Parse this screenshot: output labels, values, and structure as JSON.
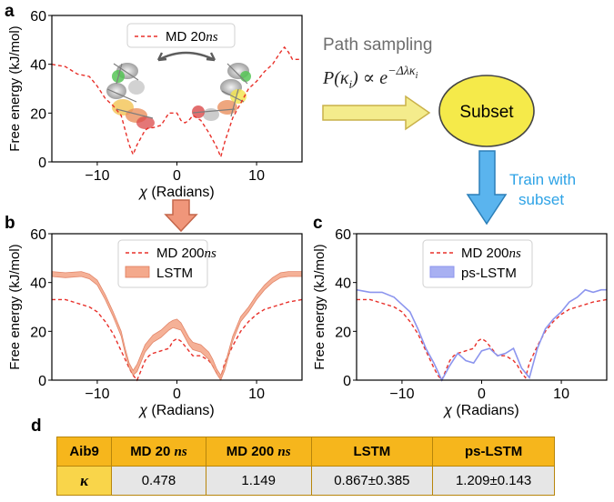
{
  "panel_labels": {
    "a": "a",
    "b": "b",
    "c": "c",
    "d": "d"
  },
  "flow": {
    "path_sampling": "Path sampling",
    "formula_prefix": "P(κ",
    "formula_sub": "i",
    "formula_mid": ") ∝ e",
    "formula_exp": "−Δλκ",
    "formula_exp_sub": "i",
    "subset": "Subset",
    "train_line1": "Train with",
    "train_line2": "subset"
  },
  "colors": {
    "md": "#e8302a",
    "lstm": "#f4a98c",
    "lstm_edge": "#e07a5a",
    "pslstm": "#8c95ee",
    "arrow_yellow": "#f4ec8c",
    "arrow_orange": "#f0967a",
    "arrow_blue": "#5ab4ee",
    "subset_fill": "#f5ea4a",
    "train_text": "#2ea3e6"
  },
  "chart_data": [
    {
      "panel": "a",
      "type": "line",
      "xlabel_sym": "χ",
      "xlabel_text": " (Radians)",
      "ylabel": "Free energy (kJ/mol)",
      "xlim": [
        -15.7,
        15.7
      ],
      "ylim": [
        0,
        60
      ],
      "xticks": [
        -10,
        0,
        10
      ],
      "xticklabels": [
        "−10",
        "0",
        "10"
      ],
      "yticks": [
        0,
        20,
        40,
        60
      ],
      "yticklabels": [
        "0",
        "20",
        "40",
        "60"
      ],
      "series": [
        {
          "name": "MD 20",
          "name_unit": "ns",
          "style": "dashed",
          "x": [
            -15.7,
            -14,
            -12.5,
            -11,
            -10,
            -9,
            -8,
            -7,
            -6.5,
            -6,
            -5.5,
            -5,
            -4.5,
            -4,
            -3.5,
            -3,
            -2,
            -1,
            0,
            0.5,
            1,
            1.5,
            2,
            3,
            4,
            4.5,
            5,
            5.5,
            6,
            7,
            8,
            9,
            10,
            11,
            12,
            13,
            13.5,
            14,
            14.5,
            15.7
          ],
          "values": [
            40,
            39,
            36,
            35,
            31,
            26,
            23,
            19,
            13,
            7,
            3,
            7,
            10,
            13,
            14,
            14,
            15,
            20,
            20,
            17,
            16,
            17,
            19,
            17,
            12,
            9,
            6,
            2,
            8,
            18,
            24,
            30,
            33,
            37,
            40,
            45,
            47,
            45,
            42,
            42
          ]
        }
      ]
    },
    {
      "panel": "b",
      "type": "line",
      "xlabel_sym": "χ",
      "xlabel_text": " (Radians)",
      "ylabel": "Free energy (kJ/mol)",
      "xlim": [
        -15.7,
        15.7
      ],
      "ylim": [
        0,
        60
      ],
      "xticks": [
        -10,
        0,
        10
      ],
      "xticklabels": [
        "−10",
        "0",
        "10"
      ],
      "yticks": [
        0,
        20,
        40,
        60
      ],
      "yticklabels": [
        "0",
        "20",
        "40",
        "60"
      ],
      "series": [
        {
          "name": "MD 200",
          "name_unit": "ns",
          "style": "dashed",
          "x": [
            -15.7,
            -14,
            -12,
            -11,
            -10,
            -9,
            -8,
            -7,
            -6,
            -5.5,
            -5,
            -4.5,
            -4,
            -3.5,
            -3,
            -2,
            -1,
            -0.5,
            0,
            0.5,
            1,
            1.5,
            2,
            3,
            4,
            4.5,
            5,
            5.5,
            6,
            7,
            8,
            9,
            10,
            11,
            12,
            13,
            14,
            15.7
          ],
          "values": [
            33,
            33,
            31,
            30,
            28,
            24,
            19,
            12,
            5,
            2,
            0,
            4,
            8,
            10,
            11,
            12,
            13,
            16,
            17,
            16,
            14,
            12,
            10,
            10,
            8,
            6,
            3,
            1,
            7,
            14,
            20,
            24,
            27,
            29,
            30,
            31,
            32,
            33
          ]
        },
        {
          "name": "LSTM",
          "style": "band",
          "x": [
            -15.7,
            -14,
            -12,
            -11,
            -10,
            -9,
            -8,
            -7,
            -6.5,
            -6,
            -5.5,
            -5,
            -4.5,
            -4,
            -3.5,
            -3,
            -2,
            -1,
            -0.5,
            0,
            0.5,
            1,
            1.5,
            2,
            3,
            4,
            4.5,
            5,
            5.5,
            6,
            7,
            8,
            9,
            10,
            11,
            12,
            13,
            14,
            15.7
          ],
          "values": [
            43.5,
            43,
            43.5,
            42.5,
            40,
            34,
            27,
            19,
            12,
            6,
            3,
            5,
            9,
            13,
            15,
            17,
            19,
            22,
            23,
            23.5,
            22,
            19,
            16,
            14,
            13,
            10,
            7,
            3.5,
            1,
            5,
            17,
            25,
            29,
            34,
            38,
            41,
            43,
            43.5,
            43.5
          ],
          "lower": [
            42.5,
            42,
            42.5,
            41.5,
            39,
            33,
            26,
            18,
            11,
            5,
            2,
            3.5,
            7.5,
            11.5,
            13.5,
            15.5,
            17.5,
            20.5,
            21.5,
            21,
            20.5,
            17.5,
            14.5,
            12.5,
            11.5,
            8.5,
            5.5,
            2.5,
            0,
            4,
            16,
            24,
            28,
            33,
            37,
            40,
            42,
            42.5,
            42.5
          ],
          "upper": [
            44.5,
            44,
            44.5,
            43.5,
            41,
            35,
            28,
            20,
            13,
            7,
            4,
            6.5,
            10.5,
            14.5,
            16.5,
            18.5,
            20.5,
            23.5,
            24.5,
            25,
            23.5,
            20.5,
            17.5,
            15.5,
            14.5,
            11.5,
            8.5,
            4.5,
            2,
            6,
            18,
            26,
            30,
            35,
            39,
            42,
            44,
            44.5,
            44.5
          ]
        }
      ]
    },
    {
      "panel": "c",
      "type": "line",
      "xlabel_sym": "χ",
      "xlabel_text": " (Radians)",
      "ylabel": "Free energy (kJ/mol)",
      "xlim": [
        -15.7,
        15.7
      ],
      "ylim": [
        0,
        60
      ],
      "xticks": [
        -10,
        0,
        10
      ],
      "xticklabels": [
        "−10",
        "0",
        "10"
      ],
      "yticks": [
        0,
        20,
        40,
        60
      ],
      "yticklabels": [
        "0",
        "20",
        "40",
        "60"
      ],
      "series": [
        {
          "name": "MD 200",
          "name_unit": "ns",
          "style": "dashed",
          "x": [
            -15.7,
            -14,
            -12,
            -11,
            -10,
            -9,
            -8,
            -7,
            -6,
            -5.5,
            -5,
            -4.5,
            -4,
            -3.5,
            -3,
            -2,
            -1,
            -0.5,
            0,
            0.5,
            1,
            1.5,
            2,
            3,
            4,
            4.5,
            5,
            5.5,
            6,
            7,
            8,
            9,
            10,
            11,
            12,
            13,
            14,
            15.7
          ],
          "values": [
            33,
            33,
            31,
            30,
            28,
            24,
            19,
            12,
            5,
            2,
            0,
            4,
            8,
            10,
            11,
            12,
            13,
            16,
            17,
            16,
            14,
            12,
            10,
            10,
            8,
            6,
            3,
            1,
            7,
            14,
            20,
            24,
            27,
            29,
            30,
            31,
            32,
            33
          ]
        },
        {
          "name": "ps-LSTM",
          "style": "solid",
          "x": [
            -15.7,
            -14,
            -12.5,
            -11,
            -10,
            -9,
            -8,
            -7,
            -6,
            -5,
            -4,
            -3,
            -2,
            -1,
            0,
            1,
            2,
            3,
            4,
            5,
            6,
            7,
            8,
            9,
            10,
            11,
            12,
            13,
            14,
            15,
            15.7
          ],
          "values": [
            37,
            36,
            36,
            34,
            31,
            28,
            21,
            13,
            7,
            0,
            6,
            11,
            8,
            7,
            12,
            13,
            10,
            11,
            13,
            5,
            1,
            13,
            21,
            25,
            28,
            32,
            34,
            37,
            36,
            37,
            37
          ]
        }
      ]
    }
  ],
  "table": {
    "headers": [
      "Aib9",
      "MD 20",
      "MD 200",
      "LSTM",
      "ps-LSTM"
    ],
    "header_units": [
      "",
      "ns",
      "ns",
      "",
      ""
    ],
    "row_label": "κ",
    "row_values": [
      "0.478",
      "1.149",
      "0.867±0.385",
      "1.209±0.143"
    ]
  }
}
